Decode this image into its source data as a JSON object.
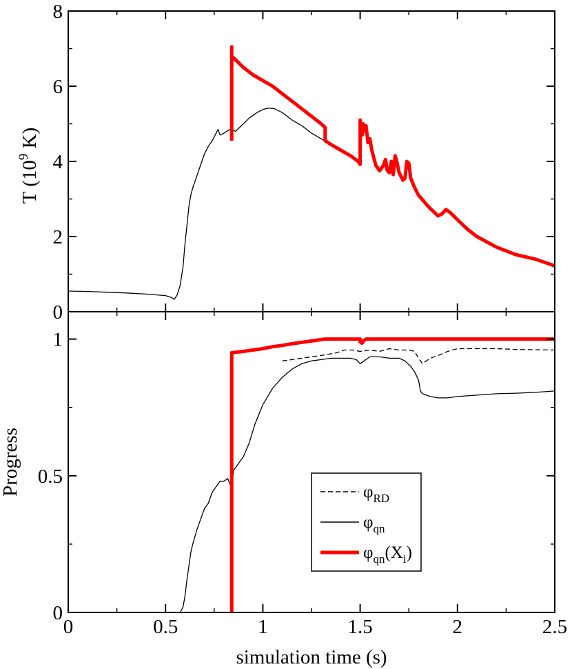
{
  "chart_data": [
    {
      "type": "line",
      "panel": "top",
      "xlim": [
        0,
        2.5
      ],
      "ylim": [
        0,
        8
      ],
      "xticks": [
        0,
        0.5,
        1,
        1.5,
        2,
        2.5
      ],
      "yticks": [
        0,
        2,
        4,
        6,
        8
      ],
      "ytick_labels": [
        "0",
        "2",
        "4",
        "6",
        "8"
      ],
      "ylabel": {
        "base": "T (10",
        "sup": "9",
        "tail": " K)"
      },
      "series": [
        {
          "key": "T_fine",
          "style": "solid-black",
          "x": [
            0,
            0.1,
            0.2,
            0.3,
            0.4,
            0.5,
            0.53,
            0.545,
            0.56,
            0.575,
            0.59,
            0.6,
            0.61,
            0.62,
            0.63,
            0.64,
            0.66,
            0.68,
            0.7,
            0.72,
            0.74,
            0.76,
            0.77,
            0.78,
            0.8,
            0.83,
            0.86,
            0.9,
            0.93,
            0.97,
            1.0,
            1.03,
            1.06,
            1.1,
            1.15,
            1.2,
            1.25,
            1.3,
            1.35,
            1.4,
            1.45,
            1.49,
            1.5
          ],
          "y": [
            0.55,
            0.54,
            0.52,
            0.5,
            0.47,
            0.43,
            0.38,
            0.33,
            0.45,
            0.7,
            1.2,
            1.8,
            2.3,
            2.8,
            3.1,
            3.3,
            3.6,
            3.9,
            4.2,
            4.4,
            4.55,
            4.75,
            4.85,
            4.7,
            4.75,
            4.85,
            4.8,
            5.0,
            5.15,
            5.3,
            5.38,
            5.42,
            5.4,
            5.3,
            5.1,
            4.95,
            4.75,
            4.6,
            4.45,
            4.3,
            4.15,
            4.0,
            3.95
          ]
        },
        {
          "key": "T_NSE",
          "style": "thick-red",
          "x": [
            0.84,
            0.84,
            0.84,
            0.86,
            0.9,
            0.95,
            1.0,
            1.05,
            1.1,
            1.15,
            1.2,
            1.25,
            1.3,
            1.32,
            1.32,
            1.35,
            1.4,
            1.45,
            1.49,
            1.5,
            1.5,
            1.51,
            1.515,
            1.52,
            1.53,
            1.54,
            1.55,
            1.56,
            1.58,
            1.6,
            1.62,
            1.63,
            1.64,
            1.65,
            1.66,
            1.67,
            1.68,
            1.69,
            1.7,
            1.72,
            1.73,
            1.74,
            1.75,
            1.76,
            1.78,
            1.8,
            1.85,
            1.9,
            1.92,
            1.94,
            1.96,
            2.0,
            2.05,
            2.1,
            2.2,
            2.3,
            2.4,
            2.5
          ],
          "y": [
            4.55,
            7.05,
            6.8,
            6.7,
            6.5,
            6.3,
            6.15,
            6.0,
            5.8,
            5.6,
            5.4,
            5.2,
            5.0,
            4.9,
            4.55,
            4.45,
            4.3,
            4.15,
            4.0,
            3.92,
            5.1,
            4.7,
            5.0,
            4.8,
            4.95,
            4.5,
            4.6,
            4.3,
            3.9,
            3.75,
            3.9,
            4.05,
            3.75,
            3.7,
            4.0,
            3.65,
            4.15,
            3.95,
            3.7,
            3.5,
            3.55,
            4.0,
            3.95,
            3.55,
            3.3,
            3.1,
            2.8,
            2.55,
            2.6,
            2.72,
            2.65,
            2.45,
            2.2,
            2.0,
            1.72,
            1.52,
            1.4,
            1.22
          ]
        }
      ]
    },
    {
      "type": "line",
      "panel": "bottom",
      "xlim": [
        0,
        2.5
      ],
      "ylim": [
        0,
        1.1
      ],
      "xticks": [
        0,
        0.5,
        1,
        1.5,
        2,
        2.5
      ],
      "xtick_labels": [
        "0",
        "0.5",
        "1",
        "1.5",
        "2",
        "2.5"
      ],
      "yticks": [
        0,
        0.5,
        1
      ],
      "ytick_labels": [
        "0",
        "0.5",
        "1"
      ],
      "xlabel": "simulation time (s)",
      "ylabel": "Progress",
      "legend_placement": "center-right",
      "series": [
        {
          "key": "phi_RD",
          "legend": {
            "base": "φ",
            "sub": "RD",
            "tail": ""
          },
          "style": "dashed-black",
          "x": [
            1.1,
            1.2,
            1.3,
            1.38,
            1.42,
            1.46,
            1.5,
            1.55,
            1.6,
            1.65,
            1.7,
            1.75,
            1.78,
            1.8,
            1.82,
            1.86,
            1.9,
            1.95,
            2.0,
            2.1,
            2.2,
            2.3,
            2.4,
            2.5
          ],
          "y": [
            0.92,
            0.93,
            0.94,
            0.95,
            0.96,
            0.96,
            0.955,
            0.96,
            0.955,
            0.965,
            0.96,
            0.96,
            0.955,
            0.93,
            0.91,
            0.93,
            0.94,
            0.955,
            0.965,
            0.965,
            0.965,
            0.962,
            0.961,
            0.96
          ]
        },
        {
          "key": "phi_qn",
          "legend": {
            "base": "φ",
            "sub": "qn",
            "tail": ""
          },
          "style": "solid-black",
          "x": [
            0.575,
            0.59,
            0.6,
            0.61,
            0.62,
            0.63,
            0.64,
            0.66,
            0.68,
            0.7,
            0.72,
            0.74,
            0.76,
            0.78,
            0.8,
            0.82,
            0.83,
            0.84,
            0.85,
            0.88,
            0.9,
            0.93,
            0.96,
            1.0,
            1.05,
            1.1,
            1.15,
            1.2,
            1.25,
            1.3,
            1.35,
            1.4,
            1.45,
            1.48,
            1.5,
            1.52,
            1.55,
            1.6,
            1.65,
            1.7,
            1.73,
            1.76,
            1.78,
            1.8,
            1.81,
            1.82,
            1.86,
            1.9,
            1.95,
            2.0,
            2.1,
            2.2,
            2.3,
            2.4,
            2.5
          ],
          "y": [
            0,
            0.02,
            0.06,
            0.12,
            0.17,
            0.22,
            0.25,
            0.3,
            0.34,
            0.38,
            0.4,
            0.44,
            0.46,
            0.48,
            0.48,
            0.49,
            0.47,
            0.46,
            0.52,
            0.55,
            0.57,
            0.62,
            0.69,
            0.76,
            0.82,
            0.86,
            0.89,
            0.91,
            0.92,
            0.925,
            0.93,
            0.93,
            0.93,
            0.925,
            0.91,
            0.92,
            0.935,
            0.935,
            0.93,
            0.93,
            0.92,
            0.9,
            0.88,
            0.85,
            0.81,
            0.8,
            0.79,
            0.785,
            0.785,
            0.79,
            0.795,
            0.8,
            0.802,
            0.805,
            0.81
          ]
        },
        {
          "key": "phi_qn_Xi",
          "legend": {
            "base": "φ",
            "sub": "qn",
            "tail": "(X",
            "sub2": "i",
            "tail2": ")"
          },
          "style": "thick-red",
          "x": [
            0.84,
            0.84,
            0.85,
            0.9,
            0.95,
            1.0,
            1.05,
            1.1,
            1.15,
            1.2,
            1.25,
            1.3,
            1.32,
            1.33,
            1.4,
            1.45,
            1.5,
            1.5,
            1.51,
            1.52,
            1.53,
            1.6,
            1.7,
            1.8,
            1.9,
            2.0,
            2.2,
            2.4,
            2.5
          ],
          "y": [
            0,
            0.95,
            0.951,
            0.955,
            0.96,
            0.965,
            0.972,
            0.977,
            0.983,
            0.988,
            0.993,
            0.998,
            1.0,
            1.0,
            1.0,
            1.0,
            1.0,
            0.99,
            0.985,
            0.995,
            1.0,
            1.0,
            1.0,
            1.0,
            1.0,
            1.0,
            1.0,
            1.0,
            1.0
          ]
        }
      ]
    }
  ]
}
